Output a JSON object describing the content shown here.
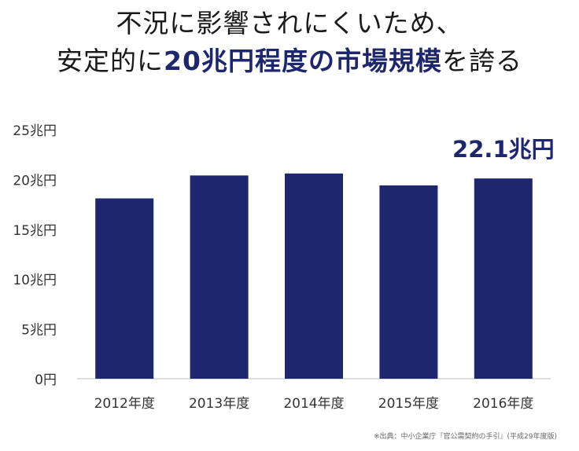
{
  "headline": {
    "line1": "不況に影響されにくいため、",
    "line2_pre": "安定的に",
    "line2_em": "20兆円程度の市場規模",
    "line2_post": "を誇る"
  },
  "colors": {
    "bar": "#1e266d",
    "accent": "#1e266d",
    "axis": "#bdbdbd"
  },
  "chart_data": {
    "type": "bar",
    "title": "",
    "xlabel": "",
    "ylabel": "",
    "categories": [
      "2012年度",
      "2013年度",
      "2014年度",
      "2015年度",
      "2016年度"
    ],
    "values": [
      18.1,
      20.4,
      20.6,
      19.4,
      20.1
    ],
    "ylim": [
      0,
      25
    ],
    "yticks": [
      "0円",
      "5兆円",
      "10兆円",
      "15兆円",
      "20兆円",
      "25兆円"
    ],
    "annotation": "22.1兆円",
    "grid": false,
    "legend": "none"
  },
  "source": "※出典：中小企業庁『官公需契約の手引』(平成29年度版)"
}
